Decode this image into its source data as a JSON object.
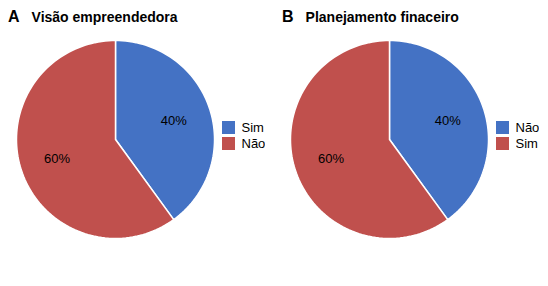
{
  "chart_data": [
    {
      "type": "pie",
      "title": "Visão empreendedora",
      "annotations": [
        "A"
      ],
      "categories": [
        "Sim",
        "Não"
      ],
      "values": [
        40,
        60
      ],
      "value_labels": [
        "40%",
        "60%"
      ],
      "colors": [
        "#4472C4",
        "#C0504D"
      ],
      "data_labels": true,
      "legend": "right"
    },
    {
      "type": "pie",
      "title": "Planejamento finaceiro",
      "annotations": [
        "B"
      ],
      "categories": [
        "Não",
        "Sim"
      ],
      "values": [
        40,
        60
      ],
      "value_labels": [
        "40%",
        "60%"
      ],
      "colors": [
        "#4472C4",
        "#C0504D"
      ],
      "data_labels": true,
      "legend": "right"
    }
  ]
}
